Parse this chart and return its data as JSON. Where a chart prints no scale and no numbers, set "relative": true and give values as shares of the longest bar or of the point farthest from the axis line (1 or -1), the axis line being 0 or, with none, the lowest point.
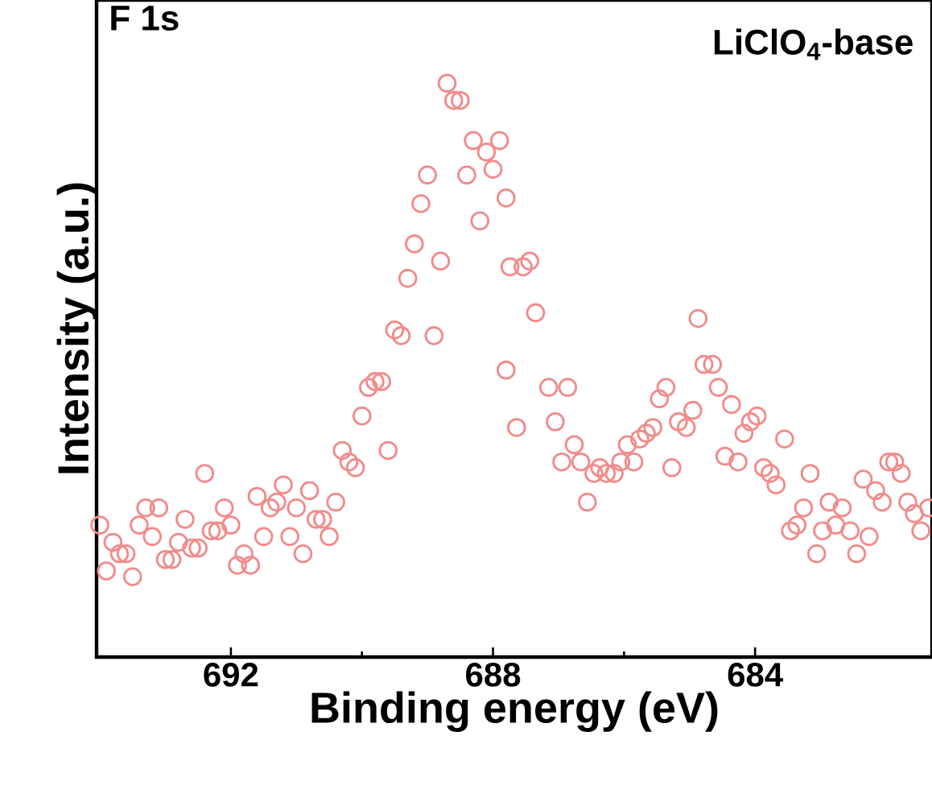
{
  "chart_data": {
    "type": "scatter",
    "title": "F 1s",
    "annotations": [
      "LiClO$_{4}$-base"
    ],
    "xlabel": "Binding energy (eV)",
    "ylabel": "Intensity (a.u.)",
    "relative": true,
    "marker": "circle",
    "color": "#f28b8b",
    "xlim": [
      694.05,
      681.3
    ],
    "xticks": [
      692,
      688,
      684
    ],
    "x": [
      694.0,
      693.8,
      693.9,
      693.7,
      693.6,
      693.5,
      693.4,
      693.3,
      693.2,
      693.1,
      693.0,
      692.9,
      692.8,
      692.7,
      692.6,
      692.5,
      692.4,
      692.3,
      692.2,
      692.1,
      692.0,
      691.9,
      691.8,
      691.7,
      691.6,
      691.5,
      691.4,
      691.3,
      691.2,
      691.1,
      691.0,
      690.9,
      690.8,
      690.7,
      690.6,
      690.5,
      690.4,
      690.3,
      690.2,
      690.1,
      690.0,
      689.9,
      689.8,
      689.7,
      689.6,
      689.5,
      689.4,
      689.3,
      689.2,
      689.1,
      689.0,
      688.9,
      688.8,
      688.7,
      688.6,
      688.5,
      688.4,
      688.3,
      688.2,
      688.1,
      688.0,
      687.9,
      687.8,
      687.8,
      687.74,
      687.64,
      687.54,
      687.44,
      687.35,
      687.15,
      687.05,
      686.95,
      686.86,
      686.76,
      686.66,
      686.56,
      686.46,
      686.37,
      686.27,
      686.15,
      686.05,
      685.95,
      685.85,
      685.76,
      685.66,
      685.56,
      685.46,
      685.36,
      685.27,
      685.17,
      685.05,
      684.95,
      684.87,
      684.78,
      684.65,
      684.56,
      684.46,
      684.36,
      684.26,
      684.17,
      684.07,
      683.97,
      683.87,
      683.77,
      683.68,
      683.55,
      683.46,
      683.36,
      683.26,
      683.16,
      683.06,
      682.97,
      682.87,
      682.77,
      682.67,
      682.55,
      682.45,
      682.35,
      682.26,
      682.16,
      682.06,
      681.96,
      681.87,
      681.77,
      681.67,
      681.57,
      681.47,
      681.35
    ],
    "values": [
      0.23,
      0.2,
      0.15,
      0.18,
      0.18,
      0.14,
      0.23,
      0.26,
      0.21,
      0.26,
      0.17,
      0.17,
      0.2,
      0.24,
      0.19,
      0.19,
      0.32,
      0.22,
      0.22,
      0.26,
      0.23,
      0.16,
      0.18,
      0.16,
      0.28,
      0.21,
      0.26,
      0.27,
      0.3,
      0.21,
      0.26,
      0.18,
      0.29,
      0.24,
      0.24,
      0.21,
      0.27,
      0.36,
      0.34,
      0.33,
      0.42,
      0.47,
      0.48,
      0.48,
      0.36,
      0.57,
      0.56,
      0.66,
      0.72,
      0.79,
      0.84,
      0.56,
      0.69,
      1.0,
      0.97,
      0.97,
      0.84,
      0.9,
      0.76,
      0.88,
      0.85,
      0.9,
      0.8,
      0.5,
      0.68,
      0.4,
      0.68,
      0.69,
      0.6,
      0.47,
      0.41,
      0.34,
      0.47,
      0.37,
      0.34,
      0.27,
      0.32,
      0.33,
      0.32,
      0.32,
      0.34,
      0.37,
      0.34,
      0.38,
      0.39,
      0.4,
      0.45,
      0.47,
      0.33,
      0.41,
      0.4,
      0.43,
      0.59,
      0.51,
      0.51,
      0.47,
      0.35,
      0.44,
      0.34,
      0.39,
      0.41,
      0.42,
      0.33,
      0.32,
      0.3,
      0.38,
      0.22,
      0.23,
      0.26,
      0.32,
      0.18,
      0.22,
      0.27,
      0.23,
      0.26,
      0.22,
      0.18,
      0.31,
      0.21,
      0.29,
      0.27,
      0.34,
      0.34,
      0.32,
      0.27,
      0.25,
      0.22,
      0.26
    ]
  }
}
